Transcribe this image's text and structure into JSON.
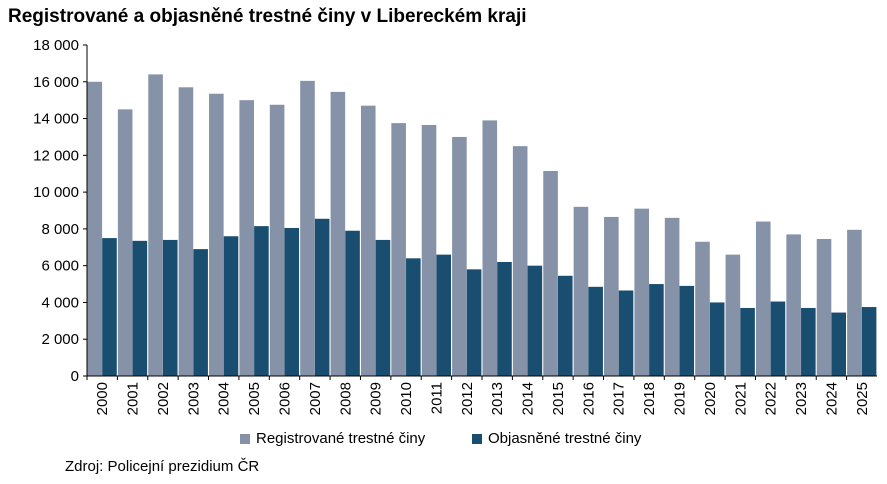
{
  "chart_data": {
    "type": "bar",
    "title": "Registrované a objasněné trestné činy  v Libereckém kraji",
    "categories": [
      "2000",
      "2001",
      "2002",
      "2003",
      "2004",
      "2005",
      "2006",
      "2007",
      "2008",
      "2009",
      "2010",
      "2011",
      "2012",
      "2013",
      "2014",
      "2015",
      "2016",
      "2017",
      "2018",
      "2019",
      "2020",
      "2021",
      "2022",
      "2023",
      "2024",
      "2025"
    ],
    "series": [
      {
        "name": "Registrované trestné činy",
        "color": "#8592A8",
        "values": [
          16000,
          14500,
          16400,
          15700,
          15350,
          15000,
          14750,
          16050,
          15450,
          14700,
          13750,
          13650,
          13000,
          13900,
          12500,
          11150,
          9200,
          8650,
          9100,
          8600,
          7300,
          6600,
          8400,
          7700,
          7450,
          7950
        ]
      },
      {
        "name": "Objasněné trestné činy",
        "color": "#1A4E70",
        "values": [
          7500,
          7350,
          7400,
          6900,
          7600,
          8150,
          8050,
          8550,
          7900,
          7400,
          6400,
          6600,
          5800,
          6200,
          6000,
          5450,
          4850,
          4650,
          5000,
          4900,
          4000,
          3700,
          4050,
          3700,
          3450,
          3750
        ]
      }
    ],
    "ylim": [
      0,
      18000
    ],
    "yticks": [
      0,
      2000,
      4000,
      6000,
      8000,
      10000,
      12000,
      14000,
      16000,
      18000
    ],
    "ytick_labels": [
      "0",
      "2 000",
      "4 000",
      "6 000",
      "8 000",
      "10 000",
      "12 000",
      "14 000",
      "16 000",
      "18 000"
    ],
    "xlabel": "",
    "ylabel": "",
    "grid": false,
    "legend_position": "bottom",
    "source": "Zdroj: Policejní prezidium ČR"
  }
}
